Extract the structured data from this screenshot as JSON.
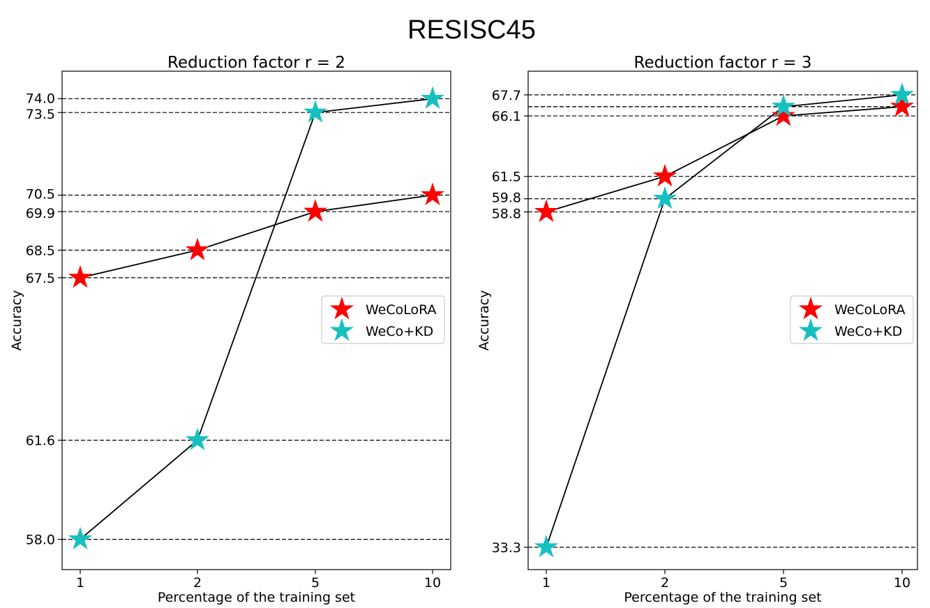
{
  "figure_title": "RESISC45",
  "colors": {
    "wecolora": "#ff0000",
    "wecokd": "#17c0c0",
    "line": "#000000",
    "guide": "#000000",
    "legend_border": "#cccccc"
  },
  "chart_data": [
    {
      "type": "line",
      "title": "Reduction factor r = 2",
      "xlabel": "Percentage of the training set",
      "ylabel": "Accuracy",
      "categories": [
        "1",
        "2",
        "5",
        "10"
      ],
      "ylim": [
        56.9,
        75.0
      ],
      "grid": false,
      "legend_position": "center-right",
      "series": [
        {
          "name": "WeCoLoRA",
          "values": [
            67.5,
            68.5,
            69.9,
            70.5
          ]
        },
        {
          "name": "WeCo+KD",
          "values": [
            58.0,
            61.6,
            73.5,
            74.0
          ]
        }
      ],
      "yticks": [
        58.0,
        61.6,
        67.5,
        68.5,
        69.9,
        70.5,
        73.5,
        74.0
      ],
      "ytick_labels": [
        "58.0",
        "61.6",
        "67.5",
        "68.5",
        "69.9",
        "70.5",
        "73.5",
        "74.0"
      ],
      "hlines": [
        58.0,
        61.6,
        67.5,
        68.5,
        69.9,
        70.5,
        73.5,
        74.0
      ]
    },
    {
      "type": "line",
      "title": "Reduction factor r = 3",
      "xlabel": "Percentage of the training set",
      "ylabel": "Accuracy",
      "categories": [
        "1",
        "2",
        "5",
        "10"
      ],
      "ylim": [
        31.6,
        69.5
      ],
      "grid": false,
      "legend_position": "center-right",
      "series": [
        {
          "name": "WeCoLoRA",
          "values": [
            58.8,
            61.5,
            66.1,
            66.8
          ]
        },
        {
          "name": "WeCo+KD",
          "values": [
            33.3,
            59.8,
            66.8,
            67.7
          ]
        }
      ],
      "yticks": [
        33.3,
        58.8,
        59.8,
        61.5,
        66.1,
        67.7
      ],
      "ytick_labels": [
        "33.3",
        "58.8",
        "59.8",
        "61.5",
        "66.1",
        "67.7"
      ],
      "hlines": [
        33.3,
        58.8,
        59.8,
        61.5,
        66.1,
        66.8,
        66.8,
        67.7
      ]
    }
  ]
}
